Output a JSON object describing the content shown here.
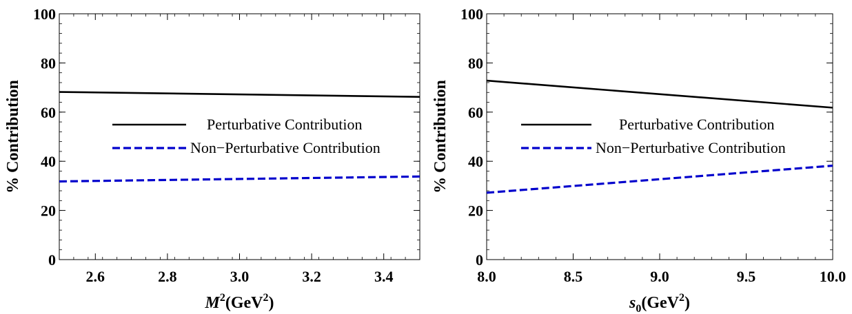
{
  "chart_data": [
    {
      "type": "line",
      "ylabel": "% Contribution",
      "xlabel_base": "M",
      "xlabel_sup": "2",
      "xlabel_unit": "(GeV",
      "xlabel_unit_sup": "2",
      "xlabel_close": ")",
      "xlim": [
        2.5,
        3.5
      ],
      "ylim": [
        0,
        100
      ],
      "xticks": [
        2.6,
        2.8,
        3.0,
        3.2,
        3.4
      ],
      "xtick_labels": [
        "2.6",
        "2.8",
        "3.0",
        "3.2",
        "3.4"
      ],
      "yticks": [
        0,
        20,
        40,
        60,
        80,
        100
      ],
      "ytick_labels": [
        "0",
        "20",
        "40",
        "60",
        "80",
        "100"
      ],
      "legend_position": "center",
      "series": [
        {
          "name": "Perturbative Contribution",
          "color": "#000000",
          "style": "solid",
          "x": [
            2.5,
            3.5
          ],
          "y": [
            68.2,
            66.2
          ]
        },
        {
          "name": "Non−Perturbative Contribution",
          "color": "#0000cc",
          "style": "dashed",
          "x": [
            2.5,
            3.5
          ],
          "y": [
            31.8,
            33.8
          ]
        }
      ]
    },
    {
      "type": "line",
      "ylabel": "% Contribution",
      "xlabel_base": "s",
      "xlabel_sub": "0",
      "xlabel_unit": "(GeV",
      "xlabel_unit_sup": "2",
      "xlabel_close": ")",
      "xlim": [
        8.0,
        10.0
      ],
      "ylim": [
        0,
        100
      ],
      "xticks": [
        8.0,
        8.5,
        9.0,
        9.5,
        10.0
      ],
      "xtick_labels": [
        "8.0",
        "8.5",
        "9.0",
        "9.5",
        "10.0"
      ],
      "yticks": [
        0,
        20,
        40,
        60,
        80,
        100
      ],
      "ytick_labels": [
        "0",
        "20",
        "40",
        "60",
        "80",
        "100"
      ],
      "legend_position": "center",
      "series": [
        {
          "name": "Perturbative Contribution",
          "color": "#000000",
          "style": "solid",
          "x": [
            8.0,
            10.0
          ],
          "y": [
            72.8,
            61.8
          ]
        },
        {
          "name": "Non−Perturbative Contribution",
          "color": "#0000cc",
          "style": "dashed",
          "x": [
            8.0,
            10.0
          ],
          "y": [
            27.2,
            38.2
          ]
        }
      ]
    }
  ]
}
